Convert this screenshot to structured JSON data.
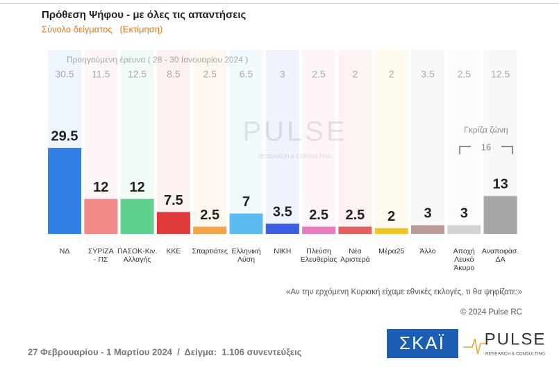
{
  "chart_data": {
    "type": "bar",
    "title": "Πρόθεση Ψήφου - με όλες τις απαντήσεις",
    "subtitle": "Σύνολο δείγματος   (Εκτίμηση)",
    "previous_title": "Προηγούμενη έρευνα ( 28 - 30 Ιανουαρίου 2024 )",
    "categories": [
      "ΝΔ",
      "ΣΥΡΙΖΑ\n- ΠΣ",
      "ΠΑΣΟΚ-Κιν.\nΑλλαγής",
      "ΚΚΕ",
      "Σπαρτιάτες",
      "Ελληνική\nΛύση",
      "ΝΙΚΗ",
      "Πλεύση\nΕλευθερίας",
      "Νέα\nΑριστερά",
      "Μέρα25",
      "Άλλο",
      "Αποχή\nΛευκό\nΆκυρο",
      "Αναποφάσ.\nΔΑ"
    ],
    "values": [
      29.5,
      12,
      12,
      7.5,
      2.5,
      7,
      3.5,
      2.5,
      2.5,
      2,
      3,
      3,
      13
    ],
    "previous_values": [
      30.5,
      11.5,
      12.5,
      8.5,
      2.5,
      6.5,
      3,
      2.5,
      2,
      2,
      3.5,
      2.5,
      12.5
    ],
    "colors": [
      "#2f7fe6",
      "#f28a8a",
      "#5fd08e",
      "#e23a3a",
      "#f3a54a",
      "#5cbcf2",
      "#3a5ee0",
      "#e57cbc",
      "#e46060",
      "#f2c526",
      "#b89a9a",
      "#d4d4d4",
      "#a6a6a6"
    ],
    "gray_zone": {
      "label": "Γκρίζα ζώνη",
      "value": 16
    },
    "watermark": "PULSE",
    "watermark_sub": "RESEARCH & CONSULTING",
    "question": "«Αν την ερχόμενη Κυριακή είχαμε εθνικές εκλογές, τι θα ψηφίζατε;»",
    "copyright": "© 2024 Pulse RC",
    "footer": "27 Φεβρουαρίου - 1 Μαρτίου 2024  /  Δείγμα:  1.106 συνεντεύξεις",
    "logo_skai": "ΣΚΑΪ",
    "logo_pulse": "PULSE",
    "logo_pulse_sub": "RESEARCH & CONSULTING"
  }
}
